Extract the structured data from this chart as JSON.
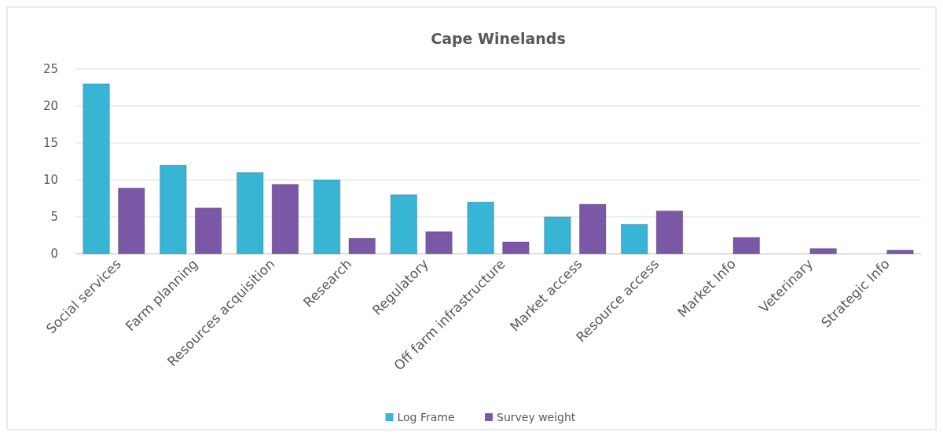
{
  "chart_data": {
    "type": "bar",
    "title": "Cape Winelands",
    "categories": [
      "Social services",
      "Farm planning",
      "Resources acquisition",
      "Research",
      "Regulatory",
      "Off farm infrastructure",
      "Market access",
      "Resource access",
      "Market Info",
      "Veterinary",
      "Strategic Info"
    ],
    "series": [
      {
        "name": "Log Frame",
        "color": "#38b4d4",
        "values": [
          23,
          12,
          11,
          10,
          8,
          7,
          5,
          4,
          null,
          null,
          null
        ]
      },
      {
        "name": "Survey weight",
        "color": "#7b58a6",
        "values": [
          8.9,
          6.2,
          9.4,
          2.1,
          3.0,
          1.6,
          6.7,
          5.8,
          2.2,
          0.7,
          0.5
        ]
      }
    ],
    "ylim": [
      0,
      25
    ],
    "yticks": [
      0,
      5,
      10,
      15,
      20,
      25
    ],
    "grid": "y",
    "legend": "bottom"
  }
}
